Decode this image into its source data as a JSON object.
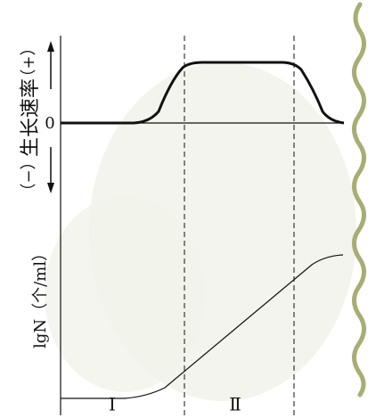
{
  "growth_rate_panel": {
    "axis_label": "生长速率",
    "positive": "（+）",
    "negative": "（−）",
    "zero": "0"
  },
  "population_panel": {
    "axis_label": "lgN（个/ml）"
  },
  "phases": [
    "Ⅰ",
    "Ⅱ"
  ]
}
